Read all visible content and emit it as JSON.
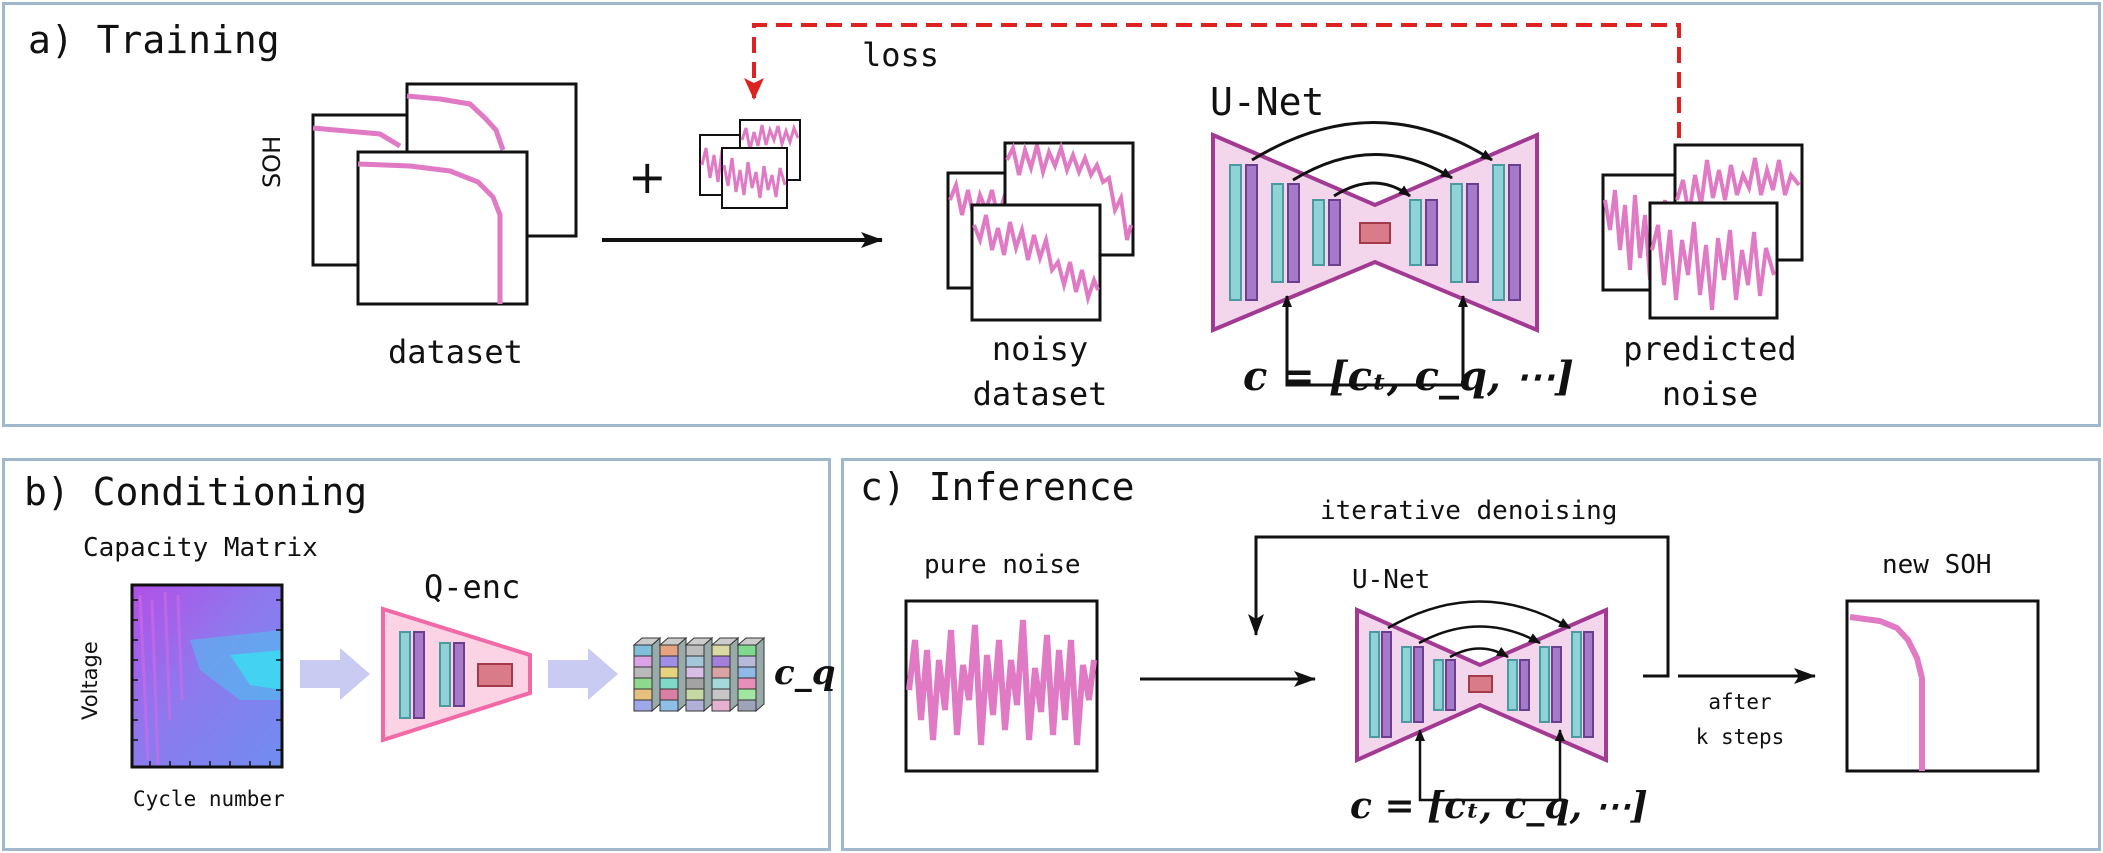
{
  "training": {
    "title": "a) Training",
    "loss_label": "loss",
    "plus_label": "+",
    "soh_axis_label": "SOH",
    "dataset_label": "dataset",
    "unet_label": "U-Net",
    "noisy_label_line1": "noisy",
    "noisy_label_line2": "dataset",
    "predicted_label_line1": "predicted",
    "predicted_label_line2": "noise",
    "condition_formula": "c = [cₜ, c_q, ⋯]"
  },
  "conditioning": {
    "title": "b) Conditioning",
    "matrix_title": "Capacity Matrix",
    "y_axis_label": "Voltage",
    "x_axis_label": "Cycle number",
    "encoder_label": "Q-enc",
    "output_symbol": "c_q"
  },
  "inference": {
    "title": "c) Inference",
    "loop_label": "iterative denoising",
    "pure_noise_label": "pure noise",
    "unet_label": "U-Net",
    "after_label_line1": "after",
    "after_label_line2": "k steps",
    "new_soh_label": "new SOH",
    "condition_formula": "c = [cₜ, c_q, ⋯]"
  },
  "colors": {
    "panel_border": "#9fb8cb",
    "signal_pink": "#e07ac4",
    "unet_fill": "#f3d6ec",
    "unet_border": "#a23a93",
    "teal_bar": "#8fd3d6",
    "purple_bar": "#a77ac9",
    "bottleneck_red": "#d97b88",
    "loss_arrow_red": "#dd2222",
    "qenc_border": "#f06aa8",
    "qenc_fill": "#fbd3e4",
    "flow_arrow_lavender": "#c9cbf3"
  }
}
